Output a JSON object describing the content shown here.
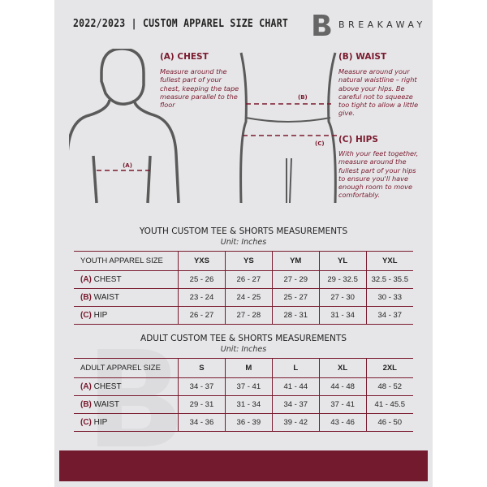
{
  "header": {
    "title": "2022/2023  |  CUSTOM APPAREL SIZE CHART",
    "brand": "BREAKAWAY",
    "logo": "B"
  },
  "measures": {
    "chest": {
      "title": "(A) CHEST",
      "desc": "Measure around the fullest part of your chest, keeping the tape measure parallel to the floor",
      "marker": "(A)"
    },
    "waist": {
      "title": "(B) WAIST",
      "desc": "Measure around your natural waistline – right above your hips. Be careful not to squeeze too tight to allow a little give.",
      "marker": "(B)"
    },
    "hips": {
      "title": "(C) HIPS",
      "desc": "With your feet together, measure around the fullest part of your hips to ensure you'll have enough room to move comfortably.",
      "marker": "(C)"
    }
  },
  "youth": {
    "title": "YOUTH CUSTOM TEE & SHORTS MEASUREMENTS",
    "unit": "Unit: Inches",
    "header": "YOUTH APPAREL SIZE",
    "sizes": [
      "YXS",
      "YS",
      "YM",
      "YL",
      "YXL"
    ],
    "rows": [
      {
        "tag": "(A)",
        "name": "CHEST",
        "values": [
          "25 - 26",
          "26 - 27",
          "27 - 29",
          "29 - 32.5",
          "32.5 - 35.5"
        ]
      },
      {
        "tag": "(B)",
        "name": "WAIST",
        "values": [
          "23 - 24",
          "24 - 25",
          "25 - 27",
          "27 - 30",
          "30 - 33"
        ]
      },
      {
        "tag": "(C)",
        "name": "HIP",
        "values": [
          "26 - 27",
          "27 - 28",
          "28 - 31",
          "31 - 34",
          "34 - 37"
        ]
      }
    ]
  },
  "adult": {
    "title": "ADULT CUSTOM TEE & SHORTS MEASUREMENTS",
    "unit": "Unit: Inches",
    "header": "ADULT APPAREL SIZE",
    "sizes": [
      "S",
      "M",
      "L",
      "XL",
      "2XL"
    ],
    "rows": [
      {
        "tag": "(A)",
        "name": "CHEST",
        "values": [
          "34 - 37",
          "37 - 41",
          "41 - 44",
          "44 - 48",
          "48 - 52"
        ]
      },
      {
        "tag": "(B)",
        "name": "WAIST",
        "values": [
          "29 - 31",
          "31 - 34",
          "34 - 37",
          "37 - 41",
          "41 - 45.5"
        ]
      },
      {
        "tag": "(C)",
        "name": "HIP",
        "values": [
          "34 - 36",
          "36 - 39",
          "39 - 42",
          "43 - 46",
          "46 - 50"
        ]
      }
    ]
  },
  "colors": {
    "accent": "#741a2e",
    "background": "#e6e6e8"
  }
}
